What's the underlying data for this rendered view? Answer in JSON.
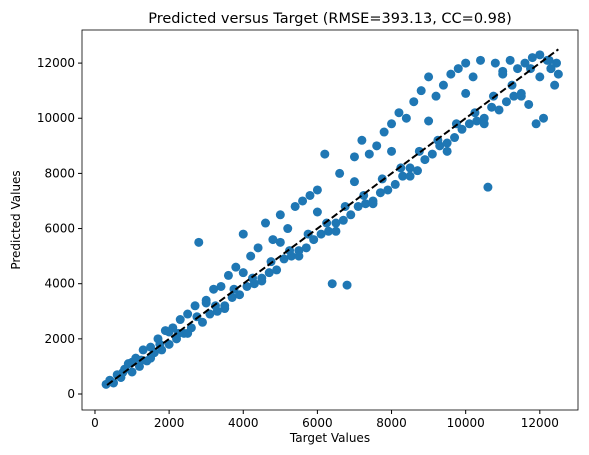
{
  "chart_data": {
    "type": "scatter",
    "title": "Predicted versus Target (RMSE=393.13, CC=0.98)",
    "xlabel": "Target Values",
    "ylabel": "Predicted Values",
    "xlim": [
      -350,
      13030
    ],
    "ylim": [
      -580,
      13200
    ],
    "xticks": [
      0,
      2000,
      4000,
      6000,
      8000,
      10000,
      12000
    ],
    "yticks": [
      0,
      2000,
      4000,
      6000,
      8000,
      10000,
      12000
    ],
    "color": "#1f77b4",
    "x": [
      300,
      400,
      500,
      600,
      700,
      800,
      900,
      1000,
      1100,
      1200,
      1300,
      1400,
      1500,
      1600,
      1700,
      1800,
      1900,
      2000,
      2100,
      2200,
      2300,
      2400,
      2500,
      2600,
      2700,
      2800,
      2900,
      3000,
      3100,
      3200,
      3300,
      3400,
      3500,
      3600,
      3700,
      3800,
      3900,
      4000,
      4100,
      4200,
      4300,
      4400,
      4500,
      4600,
      4700,
      4800,
      4900,
      5000,
      5100,
      5200,
      5300,
      5400,
      5500,
      5600,
      5700,
      5800,
      5900,
      6000,
      6100,
      6200,
      6300,
      6400,
      6500,
      6600,
      6700,
      6800,
      6900,
      7000,
      7100,
      7200,
      7300,
      7400,
      7500,
      7600,
      7700,
      7800,
      7900,
      8000,
      8100,
      8200,
      8300,
      8400,
      8500,
      8600,
      8700,
      8800,
      8900,
      9000,
      9100,
      9200,
      9300,
      9400,
      9500,
      9600,
      9700,
      9800,
      9900,
      10000,
      10100,
      10200,
      10300,
      10400,
      10500,
      10600,
      10700,
      10800,
      10900,
      11000,
      11100,
      11200,
      11300,
      11400,
      11500,
      11600,
      11700,
      11800,
      11900,
      12000,
      12100,
      12200,
      12300,
      12400,
      12450,
      12500,
      750,
      1250,
      1750,
      2250,
      2750,
      3250,
      3750,
      4250,
      4750,
      5250,
      5750,
      6250,
      6750,
      7250,
      7750,
      8250,
      8750,
      9250,
      9750,
      10250,
      10750,
      11250,
      11750,
      12250,
      1000,
      2000,
      3000,
      4000,
      5000,
      6000,
      7000,
      8000,
      9000,
      10000,
      11000,
      12000,
      1500,
      2500,
      3500,
      4500,
      5500,
      6500,
      7500,
      8500,
      9500,
      10500,
      11500,
      12300
    ],
    "y": [
      350,
      500,
      400,
      700,
      600,
      900,
      1100,
      800,
      1300,
      1000,
      1600,
      1200,
      1700,
      1500,
      2000,
      1600,
      2300,
      1800,
      2400,
      2000,
      2700,
      2200,
      2900,
      2400,
      3200,
      5500,
      2600,
      3400,
      2900,
      3800,
      3000,
      3900,
      3200,
      4300,
      3500,
      4600,
      3600,
      5800,
      3900,
      5000,
      4000,
      5300,
      4200,
      6200,
      4400,
      5600,
      4500,
      6500,
      4900,
      6000,
      5000,
      6800,
      5200,
      7000,
      5300,
      7200,
      5600,
      7400,
      5800,
      8700,
      5900,
      4000,
      6200,
      8000,
      6300,
      3950,
      6500,
      8600,
      6800,
      9200,
      6900,
      8700,
      7000,
      9000,
      7300,
      9500,
      7400,
      9800,
      7600,
      10200,
      7900,
      10000,
      8200,
      10600,
      8100,
      11000,
      8500,
      11500,
      8700,
      10800,
      9000,
      11200,
      9100,
      11600,
      9300,
      11800,
      9600,
      12000,
      9800,
      11500,
      9900,
      12100,
      10000,
      7500,
      10400,
      12000,
      10300,
      11700,
      10600,
      12100,
      10800,
      11800,
      10900,
      12000,
      10500,
      12200,
      9800,
      11500,
      10000,
      12100,
      11800,
      11200,
      12000,
      11600,
      780,
      1230,
      1800,
      2200,
      2800,
      3200,
      3800,
      4200,
      4800,
      5200,
      5800,
      6200,
      6800,
      7200,
      7800,
      8200,
      8800,
      9200,
      9800,
      10200,
      10800,
      11200,
      11800,
      12100,
      1150,
      2250,
      3300,
      4400,
      5500,
      6600,
      7700,
      8800,
      9900,
      10900,
      11600,
      12300,
      1300,
      2200,
      3100,
      4100,
      5000,
      5900,
      6900,
      7900,
      8800,
      9800,
      10800,
      11800
    ],
    "line": {
      "x": [
        326,
        12500
      ],
      "y": [
        326,
        12500
      ],
      "color": "#000000",
      "style": "dashed"
    }
  }
}
